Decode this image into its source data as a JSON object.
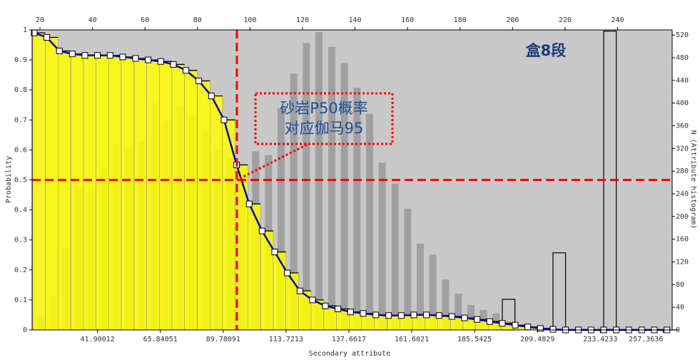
{
  "chart_data": {
    "type": "bar",
    "xlabel": "Secondary attribute",
    "ylabel": "Probability",
    "y2label": "N (Attribute histogram)",
    "x": [
      17.8,
      22.6,
      27.4,
      32.3,
      37.1,
      41.9,
      46.7,
      51.5,
      56.4,
      61.2,
      66.0,
      70.8,
      75.6,
      80.5,
      85.3,
      90.1,
      94.9,
      99.7,
      104.6,
      109.4,
      114.2,
      119.0,
      123.8,
      128.7,
      133.5,
      138.3,
      143.1,
      147.9,
      152.8,
      157.6,
      162.4,
      167.2,
      172.0,
      176.9,
      181.7,
      186.5,
      191.3,
      196.1,
      201.0,
      205.8,
      210.6,
      215.4,
      220.2,
      225.1,
      229.9,
      234.7,
      239.5,
      244.3,
      249.2,
      254.0,
      258.8
    ],
    "xlim": [
      17,
      260.8
    ],
    "xticks": [
      20,
      40,
      60,
      80,
      100,
      120,
      140,
      160,
      180,
      200,
      220,
      240
    ],
    "xticks2": [
      41.90012,
      65.84051,
      89.78091,
      113.7213,
      137.6617,
      161.6021,
      185.5425,
      209.4829,
      233.4233,
      257.3636
    ],
    "ylim": [
      0,
      1
    ],
    "yticks": [
      0,
      0.1,
      0.2,
      0.3,
      0.4,
      0.5,
      0.6,
      0.7,
      0.8,
      0.9,
      1
    ],
    "y2lim": [
      0,
      529
    ],
    "y2ticks": [
      0,
      40,
      80,
      120,
      160,
      200,
      240,
      280,
      320,
      360,
      400,
      440,
      480,
      520
    ],
    "background": "#c8c8c8",
    "series": [
      {
        "color": "#ffff00",
        "line_color": "#0000c0",
        "marker": "square",
        "values": [
          0.99,
          0.975,
          0.93,
          0.92,
          0.915,
          0.915,
          0.915,
          0.91,
          0.905,
          0.9,
          0.895,
          0.885,
          0.865,
          0.83,
          0.78,
          0.7,
          0.55,
          0.42,
          0.33,
          0.26,
          0.19,
          0.13,
          0.1,
          0.08,
          0.07,
          0.06,
          0.055,
          0.05,
          0.048,
          0.048,
          0.05,
          0.05,
          0.048,
          0.045,
          0.04,
          0.035,
          0.028,
          0.022,
          0.016,
          0.01,
          0.005,
          0.002,
          0,
          0,
          0,
          0,
          0,
          0,
          0,
          0,
          0
        ]
      },
      {
        "color": "#a0a0a0",
        "axis": "y2",
        "values": [
          25,
          60,
          146,
          249,
          251,
          286,
          328,
          322,
          332,
          400,
          368,
          394,
          378,
          349,
          318,
          303,
          289,
          315,
          308,
          391,
          452,
          506,
          525,
          499,
          471,
          427,
          381,
          295,
          258,
          214,
          152,
          133,
          89,
          64,
          44,
          35,
          29,
          15,
          8,
          0,
          0,
          0,
          0,
          0,
          0,
          0,
          0,
          0,
          0,
          0,
          0
        ]
      },
      {
        "color": "#000000",
        "axis": "y2",
        "fill": "none",
        "values": [
          null,
          null,
          null,
          null,
          null,
          null,
          null,
          null,
          null,
          null,
          null,
          null,
          null,
          null,
          null,
          null,
          null,
          null,
          null,
          null,
          null,
          null,
          null,
          null,
          null,
          null,
          null,
          null,
          null,
          null,
          null,
          null,
          null,
          null,
          null,
          null,
          null,
          54,
          null,
          null,
          null,
          136,
          null,
          null,
          null,
          527,
          null,
          null,
          null,
          null,
          null
        ]
      }
    ],
    "ref_x": 95,
    "ref_y": 0.5,
    "ref_color": "#ff0000",
    "annotation": [
      "砂岩P50概率",
      "对应伽马95"
    ],
    "label": "盒8段"
  }
}
